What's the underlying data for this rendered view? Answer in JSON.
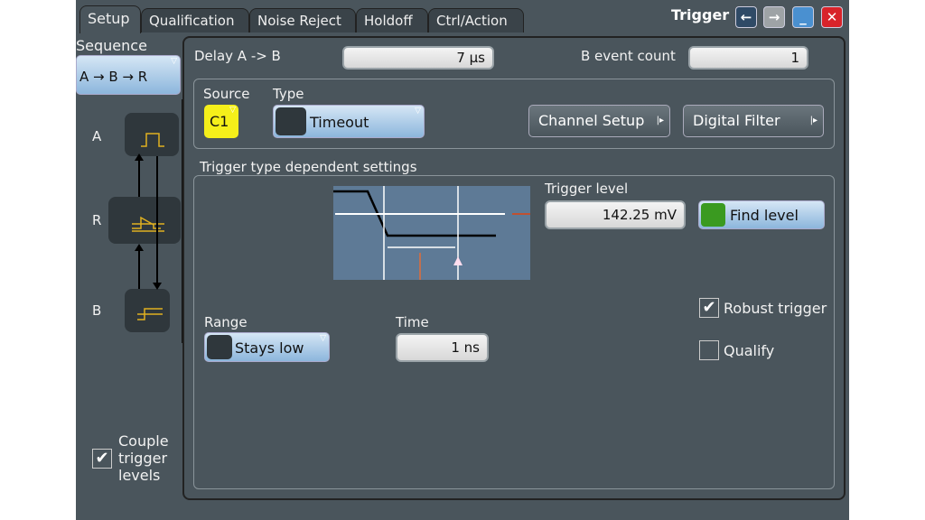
{
  "window": {
    "title": "Trigger",
    "buttons": [
      "back",
      "forward",
      "minimize",
      "close"
    ]
  },
  "tabs": [
    "Setup",
    "Qualification",
    "Noise Reject",
    "Holdoff",
    "Ctrl/Action"
  ],
  "sequence": {
    "label": "Sequence",
    "value": "A → B → R",
    "events": [
      "A",
      "R",
      "B"
    ]
  },
  "delay": {
    "label": "Delay A -> B",
    "value": "7 µs"
  },
  "b_count": {
    "label": "B event count",
    "value": "1"
  },
  "source": {
    "label": "Source",
    "value": "C1",
    "color": "#f5ef1a"
  },
  "type": {
    "label": "Type",
    "value": "Timeout"
  },
  "channel_setup": "Channel Setup",
  "digital_filter": "Digital Filter",
  "dependent": {
    "label": "Trigger type dependent settings"
  },
  "trigger_level": {
    "label": "Trigger level",
    "value": "142.25 mV"
  },
  "find_level": "Find level",
  "range": {
    "label": "Range",
    "value": "Stays low"
  },
  "time": {
    "label": "Time",
    "value": "1 ns"
  },
  "robust": {
    "label": "Robust trigger",
    "checked": true
  },
  "qualify": {
    "label": "Qualify",
    "checked": false
  },
  "couple": {
    "label1": "Couple",
    "label2": "trigger",
    "label3": "levels",
    "checked": true
  }
}
